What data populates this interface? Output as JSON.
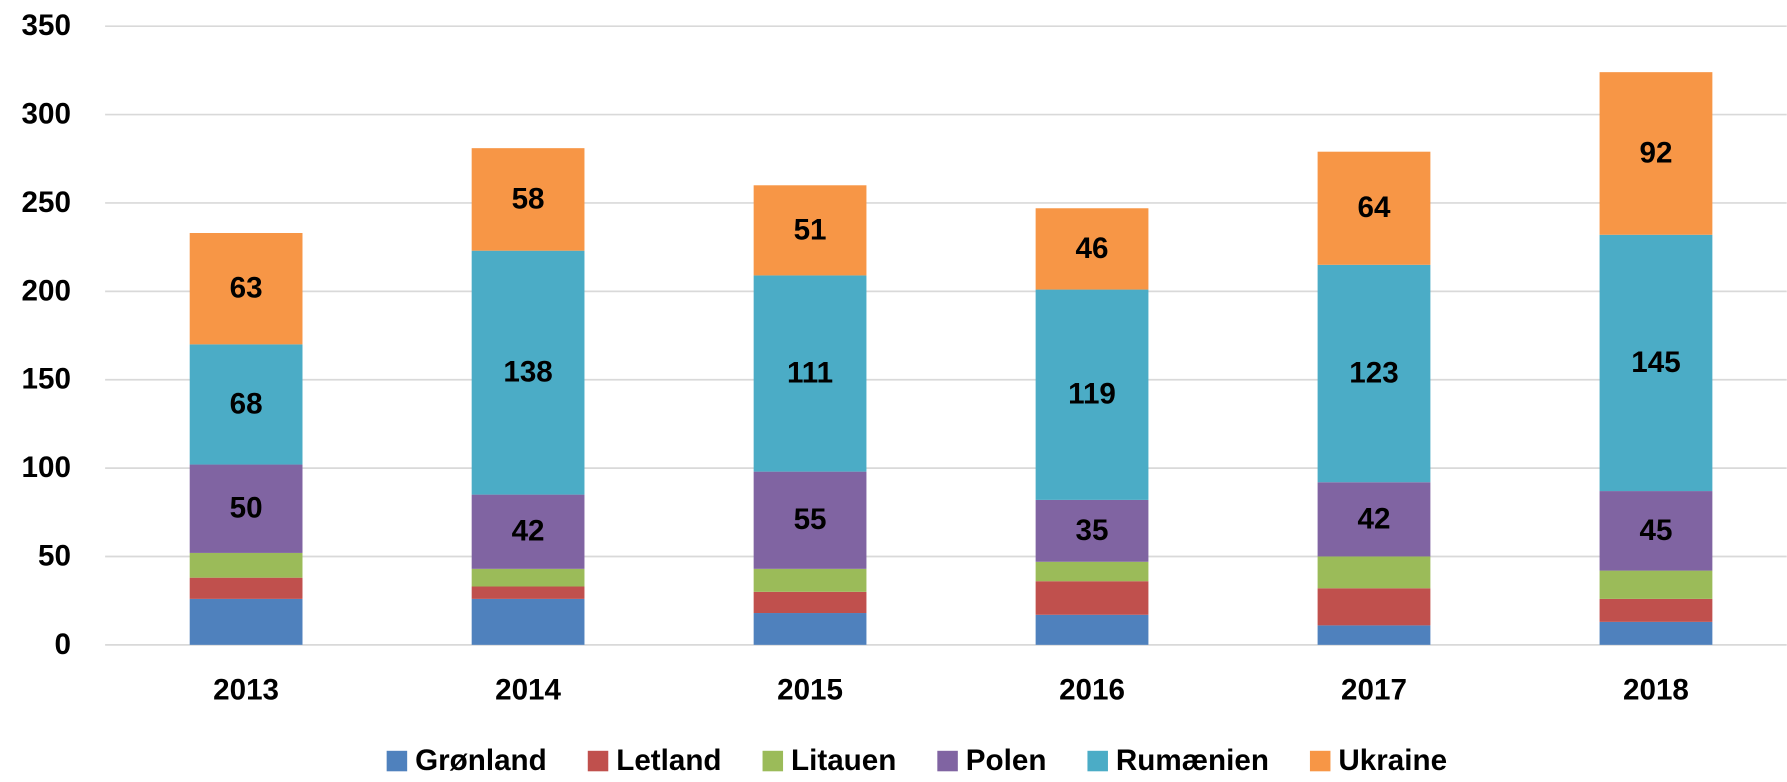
{
  "chart_data": {
    "type": "stacked_bar",
    "categories": [
      "2013",
      "2014",
      "2015",
      "2016",
      "2017",
      "2018"
    ],
    "series": [
      {
        "name": "Grønland",
        "color": "#4f81bd",
        "values": [
          26,
          26,
          18,
          17,
          11,
          13
        ],
        "data_labels": false
      },
      {
        "name": "Letland",
        "color": "#c0504d",
        "values": [
          12,
          7,
          12,
          19,
          21,
          13
        ],
        "data_labels": false
      },
      {
        "name": "Litauen",
        "color": "#9bbb59",
        "values": [
          14,
          10,
          13,
          11,
          18,
          16
        ],
        "data_labels": false
      },
      {
        "name": "Polen",
        "color": "#8064a2",
        "values": [
          50,
          42,
          55,
          35,
          42,
          45
        ],
        "data_labels": true
      },
      {
        "name": "Rumænien",
        "color": "#4bacc6",
        "values": [
          68,
          138,
          111,
          119,
          123,
          145
        ],
        "data_labels": true
      },
      {
        "name": "Ukraine",
        "color": "#f79646",
        "values": [
          63,
          58,
          51,
          46,
          64,
          92
        ],
        "data_labels": true
      }
    ],
    "ylim": [
      0,
      350
    ],
    "yticks": [
      0,
      50,
      100,
      150,
      200,
      250,
      300,
      350
    ],
    "grid": true,
    "legend": "bottom"
  }
}
